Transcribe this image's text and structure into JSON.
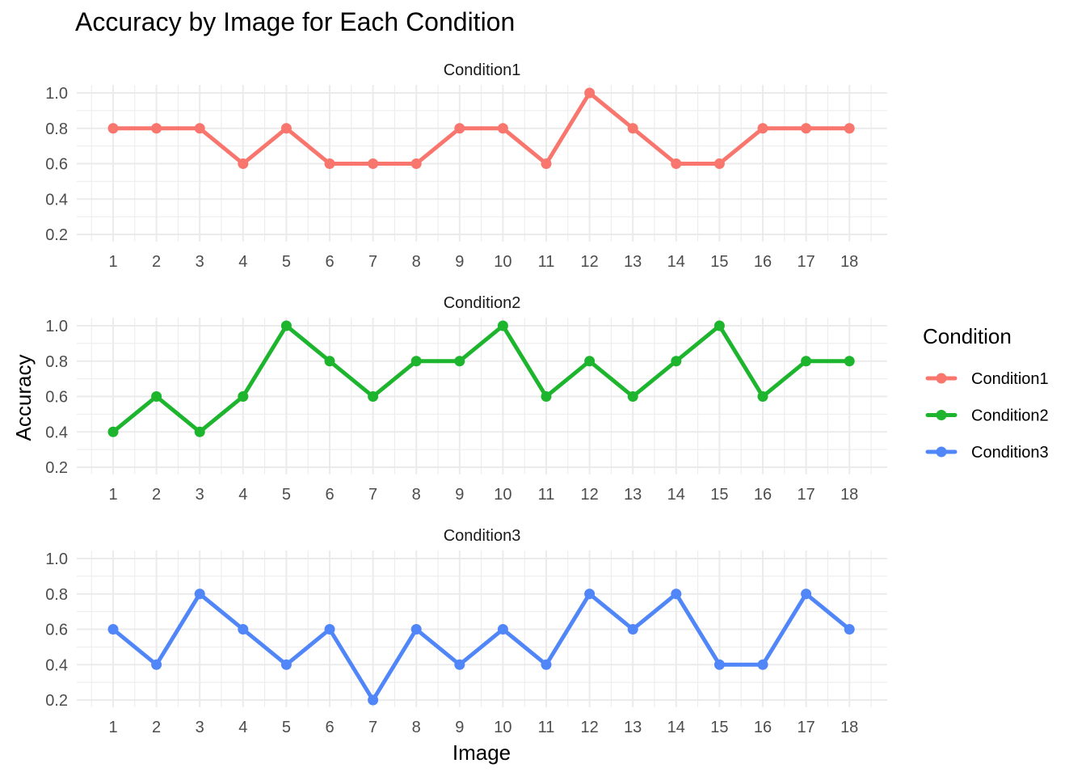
{
  "chart_data": {
    "type": "line",
    "title": "Accuracy by Image for Each Condition",
    "xlabel": "Image",
    "ylabel": "Accuracy",
    "x": [
      1,
      2,
      3,
      4,
      5,
      6,
      7,
      8,
      9,
      10,
      11,
      12,
      13,
      14,
      15,
      16,
      17,
      18
    ],
    "x_tick_labels": [
      "1",
      "2",
      "3",
      "4",
      "5",
      "6",
      "7",
      "8",
      "9",
      "10",
      "11",
      "12",
      "13",
      "14",
      "15",
      "16",
      "17",
      "18"
    ],
    "ylim": [
      0.2,
      1.0
    ],
    "y_ticks": [
      0.2,
      0.4,
      0.6,
      0.8,
      1.0
    ],
    "y_tick_labels": [
      "0.2",
      "0.4",
      "0.6",
      "0.8",
      "1.0"
    ],
    "grid": true,
    "facets": "stacked vertically, one panel per series",
    "legend": {
      "title": "Condition",
      "placement": "right"
    },
    "series": [
      {
        "name": "Condition1",
        "color": "#F8766D",
        "values": [
          0.8,
          0.8,
          0.8,
          0.6,
          0.8,
          0.6,
          0.6,
          0.6,
          0.8,
          0.8,
          0.6,
          1.0,
          0.8,
          0.6,
          0.6,
          0.8,
          0.8,
          0.8
        ]
      },
      {
        "name": "Condition2",
        "color": "#1DB52D",
        "values": [
          0.4,
          0.6,
          0.4,
          0.6,
          1.0,
          0.8,
          0.6,
          0.8,
          0.8,
          1.0,
          0.6,
          0.8,
          0.6,
          0.8,
          1.0,
          0.6,
          0.8,
          0.8
        ]
      },
      {
        "name": "Condition3",
        "color": "#5086F8",
        "values": [
          0.6,
          0.4,
          0.8,
          0.6,
          0.4,
          0.6,
          0.2,
          0.6,
          0.4,
          0.6,
          0.4,
          0.8,
          0.6,
          0.8,
          0.4,
          0.4,
          0.8,
          0.6
        ]
      }
    ]
  }
}
